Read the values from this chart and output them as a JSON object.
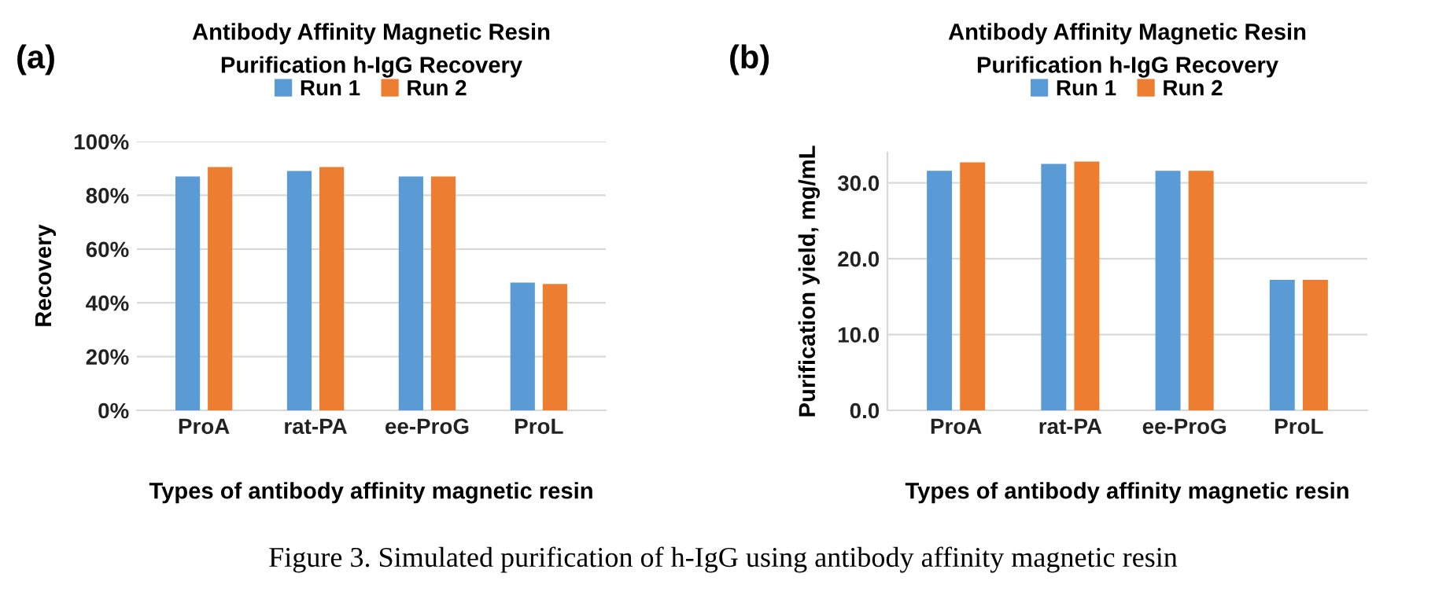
{
  "chart_data": [
    {
      "type": "bar",
      "title": "Antibody Affinity Magnetic Resin\nPurification h-IgG Recovery",
      "xlabel": "Types of antibody affinity magnetic resin",
      "ylabel": "Recovery",
      "annotations": [
        "(a)"
      ],
      "categories": [
        "ProA",
        "rat-PA",
        "ee-ProG",
        "ProL"
      ],
      "series": [
        {
          "name": "Run 1",
          "color": "#5b9bd5",
          "values": [
            87,
            89,
            87,
            47.5
          ]
        },
        {
          "name": "Run 2",
          "color": "#ed7d31",
          "values": [
            90.5,
            90.5,
            87,
            47
          ]
        }
      ],
      "ylim": [
        0,
        100
      ],
      "yticks": [
        {
          "value": 0,
          "label": "0%"
        },
        {
          "value": 20,
          "label": "20%"
        },
        {
          "value": 40,
          "label": "40%"
        },
        {
          "value": 60,
          "label": "60%"
        },
        {
          "value": 80,
          "label": "80%"
        },
        {
          "value": 100,
          "label": "100%"
        }
      ],
      "grid": "y",
      "legend": "top"
    },
    {
      "type": "bar",
      "title": "Antibody Affinity Magnetic Resin\nPurification h-IgG Recovery",
      "xlabel": "Types of antibody affinity magnetic resin",
      "ylabel": "Purification yield, mg/mL",
      "annotations": [
        "(b)",
        "Figure 3. Simulated purification of h-IgG using antibody affinity magnetic resin"
      ],
      "categories": [
        "ProA",
        "rat-PA",
        "ee-ProG",
        "ProL"
      ],
      "series": [
        {
          "name": "Run 1",
          "color": "#5b9bd5",
          "values": [
            31.6,
            32.5,
            31.6,
            17.2
          ]
        },
        {
          "name": "Run 2",
          "color": "#ed7d31",
          "values": [
            32.7,
            32.8,
            31.6,
            17.2
          ]
        }
      ],
      "ylim": [
        0,
        34
      ],
      "yticks": [
        {
          "value": 0,
          "label": "0.0"
        },
        {
          "value": 10,
          "label": "10.0"
        },
        {
          "value": 20,
          "label": "20.0"
        },
        {
          "value": 30,
          "label": "30.0"
        }
      ],
      "grid": "y",
      "legend": "top"
    }
  ]
}
